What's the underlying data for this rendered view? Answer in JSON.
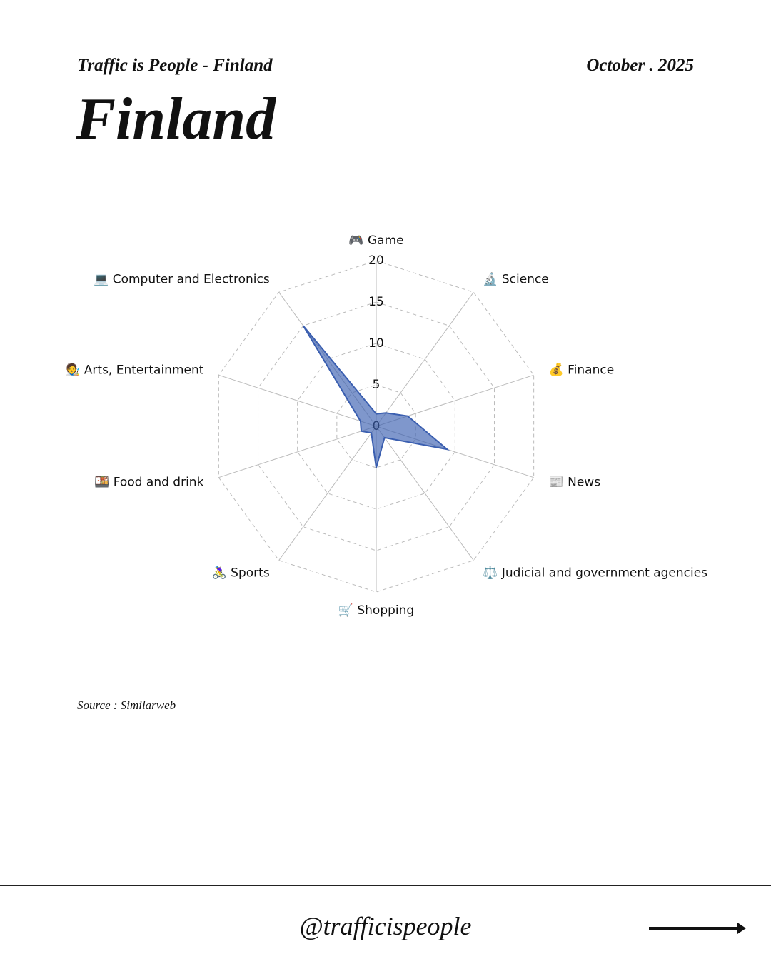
{
  "header": {
    "series_title": "Traffic is People - Finland",
    "date": "October . 2025",
    "title": "Finland"
  },
  "chart_data": {
    "type": "radar",
    "categories": [
      "🎮 Game",
      "🔬 Science",
      "💰 Finance",
      "📰 News",
      "⚖️ Judicial and government agencies",
      "🛒 Shopping",
      "🚴‍♀️ Sports",
      "🍱 Food and drink",
      "🧑‍🎨 Arts, Entertainment",
      "💻 Computer and Electronics"
    ],
    "values": [
      1.5,
      2,
      4,
      9,
      1.7,
      5,
      1,
      1.9,
      2,
      15
    ],
    "color": "#3b5fb0",
    "ylim": [
      0,
      20
    ],
    "yticks": [
      0,
      5,
      10,
      15,
      20
    ],
    "grid": true
  },
  "source": "Source : Similarweb",
  "footer": {
    "handle": "@trafficispeople"
  }
}
